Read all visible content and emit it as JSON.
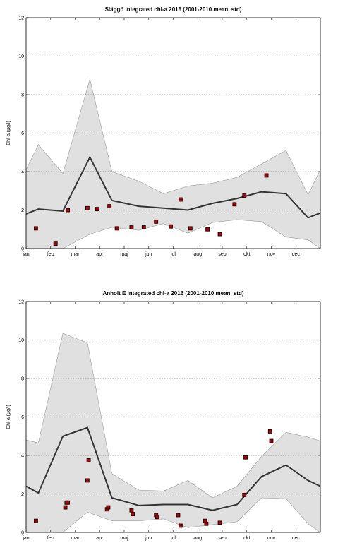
{
  "chart_data": [
    {
      "type": "line",
      "title": "Släggö integrated chl-a 2016 (2001-2010 mean, std)",
      "xlabel": "",
      "ylabel": "Chl-a (µg/l)",
      "xlim": [
        1,
        13
      ],
      "ylim": [
        0,
        12
      ],
      "x_tick_labels": [
        "jan",
        "feb",
        "mar",
        "apr",
        "maj",
        "jun",
        "jul",
        "aug",
        "sep",
        "okt",
        "nov",
        "dec"
      ],
      "y_ticks": [
        0,
        2,
        4,
        6,
        8,
        10,
        12
      ],
      "grid": "horizontal dotted",
      "colors": {
        "band": "#e0e0e0",
        "mean": "#333333",
        "point_fill": "#b00000"
      },
      "mean_line": {
        "x": [
          1.0,
          1.5,
          2.5,
          3.6,
          4.5,
          5.6,
          6.6,
          7.6,
          8.6,
          9.6,
          10.6,
          11.6,
          12.5,
          13.0
        ],
        "y": [
          1.8,
          2.05,
          1.95,
          4.75,
          2.5,
          2.2,
          2.1,
          2.0,
          2.35,
          2.6,
          2.95,
          2.85,
          1.6,
          1.85
        ]
      },
      "std_band": {
        "x": [
          1.0,
          1.5,
          2.5,
          3.6,
          4.5,
          5.6,
          6.6,
          7.6,
          8.6,
          9.6,
          10.6,
          11.6,
          12.5,
          13.0
        ],
        "upper": [
          4.1,
          5.4,
          3.9,
          8.8,
          4.0,
          3.5,
          2.85,
          3.25,
          3.4,
          3.7,
          4.4,
          5.1,
          2.8,
          4.1
        ],
        "lower": [
          0.0,
          0.0,
          0.0,
          0.75,
          1.1,
          0.95,
          1.3,
          0.8,
          1.35,
          1.5,
          1.4,
          0.6,
          0.45,
          0.0
        ]
      },
      "series": [
        {
          "x": [
            1.4,
            2.2,
            2.7,
            3.5,
            3.9,
            4.4,
            4.7,
            5.3,
            5.8,
            6.3,
            6.9,
            7.3,
            7.7,
            8.4,
            8.9,
            9.5,
            9.9,
            10.8
          ],
          "y": [
            1.05,
            0.25,
            2.0,
            2.1,
            2.05,
            2.2,
            1.05,
            1.1,
            1.1,
            1.4,
            1.15,
            2.55,
            1.05,
            1.0,
            0.75,
            2.3,
            2.75,
            3.8
          ]
        }
      ]
    },
    {
      "type": "line",
      "title": "Anholt E integrated chl-a 2016 (2001-2010 mean, std)",
      "xlabel": "",
      "ylabel": "Chl-a (µg/l)",
      "xlim": [
        1,
        13
      ],
      "ylim": [
        0,
        12
      ],
      "x_tick_labels": [
        "jan",
        "feb",
        "mar",
        "apr",
        "maj",
        "jun",
        "jul",
        "aug",
        "sep",
        "okt",
        "nov",
        "dec"
      ],
      "y_ticks": [
        0,
        2,
        4,
        6,
        8,
        10,
        12
      ],
      "grid": "horizontal dotted",
      "colors": {
        "band": "#e0e0e0",
        "mean": "#333333",
        "point_fill": "#b00000"
      },
      "mean_line": {
        "x": [
          1.0,
          1.5,
          2.5,
          3.5,
          4.5,
          5.6,
          6.6,
          7.6,
          8.6,
          9.6,
          10.6,
          11.6,
          12.5,
          13.0
        ],
        "y": [
          2.4,
          2.05,
          5.0,
          5.45,
          1.8,
          1.4,
          1.45,
          1.45,
          1.15,
          1.45,
          2.9,
          3.5,
          2.7,
          2.4
        ]
      },
      "std_band": {
        "x": [
          1.0,
          1.5,
          2.5,
          3.5,
          4.5,
          5.6,
          6.6,
          7.6,
          8.6,
          9.6,
          10.6,
          11.6,
          12.5,
          13.0
        ],
        "upper": [
          4.8,
          4.65,
          10.35,
          9.85,
          3.05,
          2.2,
          2.15,
          2.7,
          1.8,
          2.4,
          3.95,
          5.2,
          4.95,
          4.75
        ],
        "lower": [
          0.0,
          0.0,
          0.0,
          1.05,
          0.6,
          0.6,
          0.7,
          0.25,
          0.4,
          0.55,
          1.8,
          1.75,
          0.45,
          0.0
        ]
      },
      "series": [
        {
          "x": [
            1.4,
            2.6,
            2.65,
            2.7,
            3.5,
            3.55,
            4.3,
            4.35,
            5.3,
            5.35,
            6.3,
            6.35,
            7.2,
            7.3,
            8.3,
            8.35,
            8.9,
            9.9,
            9.95,
            10.95,
            11.0
          ],
          "y": [
            0.6,
            1.3,
            1.55,
            1.55,
            2.7,
            3.75,
            1.2,
            1.3,
            1.15,
            0.95,
            0.9,
            0.8,
            0.9,
            0.35,
            0.6,
            0.45,
            0.5,
            1.95,
            3.9,
            5.25,
            4.75
          ]
        }
      ]
    }
  ]
}
